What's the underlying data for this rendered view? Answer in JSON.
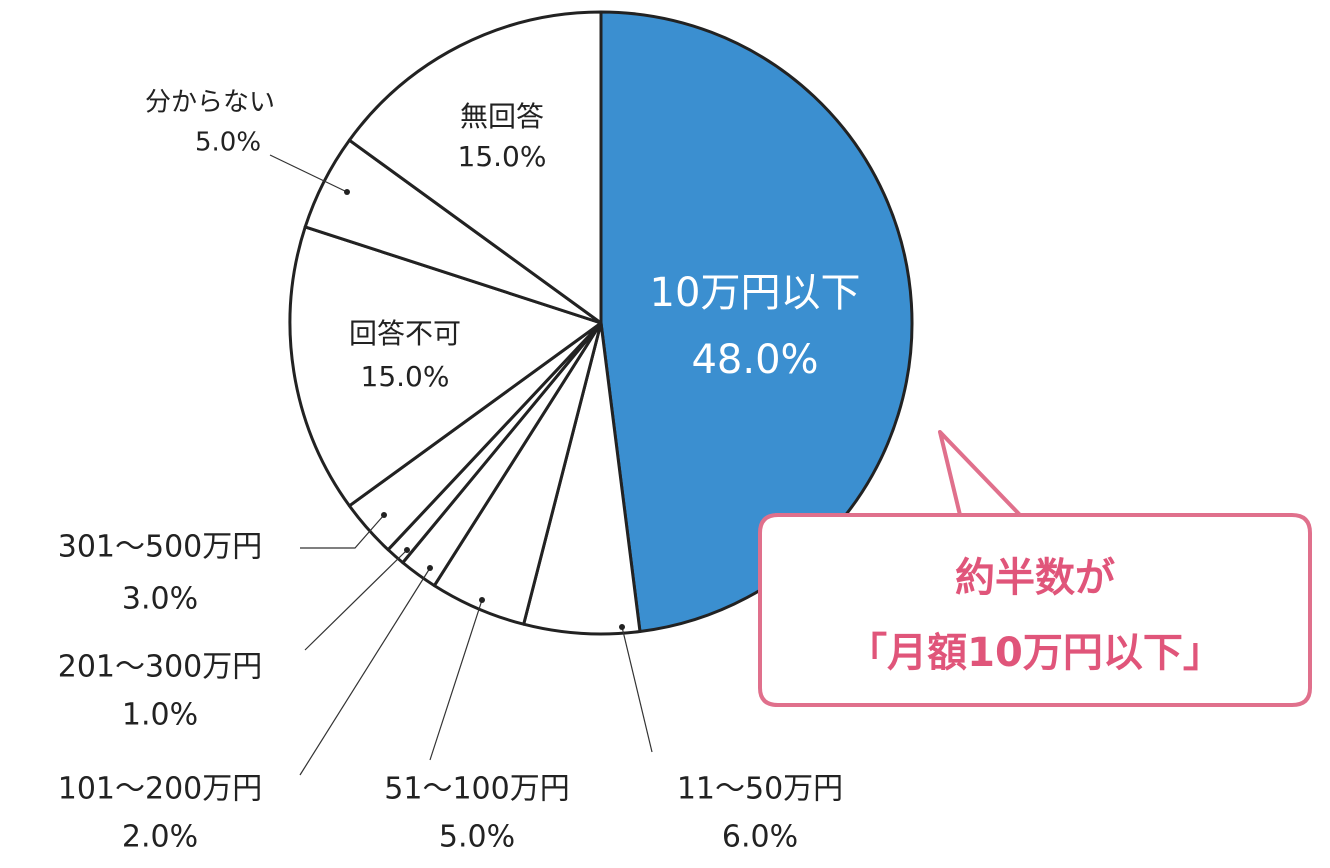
{
  "chart_data": {
    "type": "pie",
    "categories": [
      "10万円以下",
      "11～50万円",
      "51～100万円",
      "101～200万円",
      "201～300万円",
      "301～500万円",
      "回答不可",
      "分からない",
      "無回答"
    ],
    "values": [
      48,
      6,
      5,
      2,
      1,
      3,
      15,
      5,
      15
    ],
    "value_labels": [
      "48.0%",
      "6.0%",
      "5.0%",
      "2.0%",
      "1.0%",
      "3.0%",
      "15.0%",
      "5.0%",
      "15.0%"
    ],
    "colors": [
      "#3b8fd0",
      "#ffffff",
      "#ffffff",
      "#ffffff",
      "#ffffff",
      "#ffffff",
      "#ffffff",
      "#ffffff",
      "#ffffff"
    ],
    "annotation": [
      "約半数が",
      "「月額10万円以下」"
    ]
  }
}
